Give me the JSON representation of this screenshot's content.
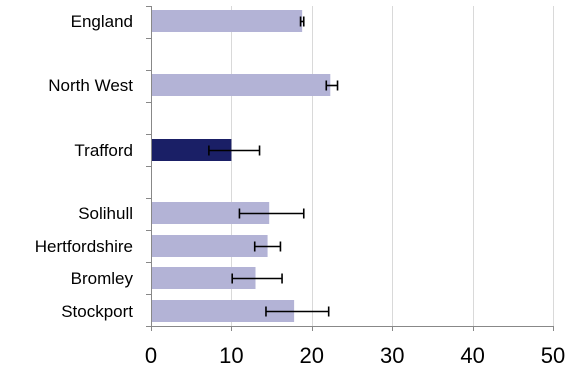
{
  "chart_data": {
    "type": "bar",
    "orientation": "horizontal",
    "categories": [
      "England",
      "North West",
      "Trafford",
      "Solihull",
      "Hertfordshire",
      "Bromley",
      "Stockport"
    ],
    "values": [
      18.8,
      22.3,
      10.0,
      14.7,
      14.5,
      13.0,
      17.8
    ],
    "error_low": [
      18.6,
      21.8,
      7.2,
      11.0,
      12.9,
      10.1,
      14.3
    ],
    "error_high": [
      19.0,
      23.2,
      13.5,
      19.0,
      16.1,
      16.3,
      22.1
    ],
    "highlight_category": "Trafford",
    "xlim": [
      0,
      50
    ],
    "x_ticks": [
      "0",
      "10",
      "20",
      "30",
      "40",
      "50"
    ],
    "grid": "vertical gridlines",
    "legend": "none",
    "title": "",
    "xlabel": "",
    "ylabel": ""
  },
  "colors": {
    "bar": "#b3b3d6",
    "highlight_bar": "#1a1f66",
    "grid": "#d9d9d9",
    "axis": "#888888",
    "error_bar": "#000000"
  }
}
